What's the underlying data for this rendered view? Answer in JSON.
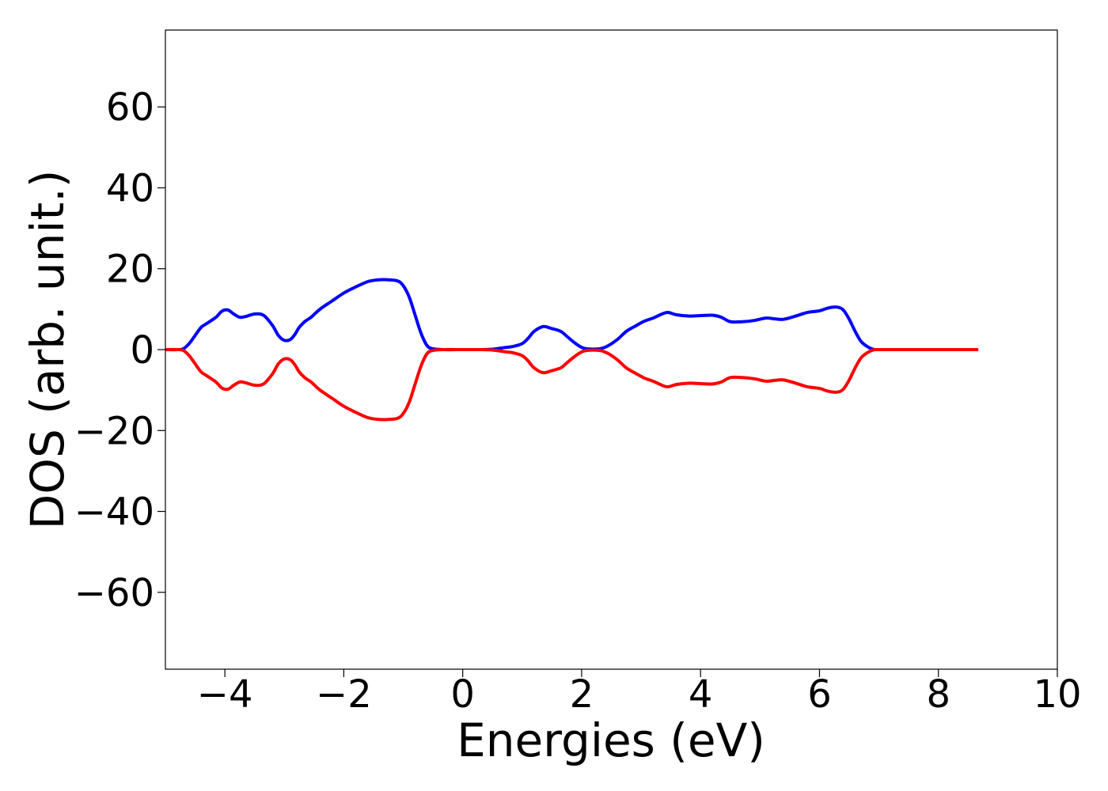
{
  "chart_data": {
    "type": "line",
    "title": "",
    "xlabel": "Energies (eV)",
    "ylabel": "DOS (arb. unit.)",
    "xlim": [
      -5,
      10
    ],
    "ylim": [
      -79,
      79
    ],
    "xticks": [
      -4,
      -2,
      0,
      2,
      4,
      6,
      8,
      10
    ],
    "xtick_labels": [
      "−4",
      "−2",
      "0",
      "2",
      "4",
      "6",
      "8",
      "10"
    ],
    "yticks": [
      60,
      40,
      20,
      0,
      -20,
      -40,
      -60
    ],
    "ytick_labels": [
      "60",
      "40",
      "20",
      "0",
      "−20",
      "−40",
      "−60"
    ],
    "grid": false,
    "legend": "none",
    "series": [
      {
        "color": "#0000ff",
        "x": [
          -5.0,
          -4.8,
          -4.7,
          -4.6,
          -4.5,
          -4.4,
          -4.3,
          -4.15,
          -4.05,
          -3.95,
          -3.85,
          -3.75,
          -3.65,
          -3.5,
          -3.35,
          -3.2,
          -3.1,
          -3.0,
          -2.9,
          -2.82,
          -2.75,
          -2.65,
          -2.55,
          -2.4,
          -2.2,
          -2.0,
          -1.8,
          -1.6,
          -1.45,
          -1.3,
          -1.1,
          -1.0,
          -0.9,
          -0.8,
          -0.7,
          -0.6,
          -0.5,
          -0.3,
          0.0,
          0.3,
          0.5,
          0.7,
          0.85,
          1.0,
          1.1,
          1.2,
          1.35,
          1.5,
          1.65,
          1.75,
          1.9,
          2.05,
          2.3,
          2.45,
          2.6,
          2.75,
          2.9,
          3.05,
          3.2,
          3.35,
          3.45,
          3.6,
          3.8,
          4.0,
          4.2,
          4.35,
          4.5,
          4.7,
          4.9,
          5.1,
          5.25,
          5.4,
          5.6,
          5.8,
          6.0,
          6.15,
          6.3,
          6.4,
          6.5,
          6.6,
          6.7,
          6.8,
          6.9,
          7.0,
          7.5,
          8.0,
          8.5,
          8.67
        ],
        "y": [
          0.0,
          0.0,
          0.2,
          1.5,
          3.5,
          5.5,
          6.5,
          8.0,
          9.5,
          9.8,
          8.8,
          8.0,
          8.2,
          8.8,
          8.5,
          6.0,
          3.5,
          2.3,
          2.5,
          3.8,
          5.5,
          7.0,
          8.0,
          10.0,
          12.0,
          14.0,
          15.5,
          16.8,
          17.2,
          17.3,
          17.0,
          15.8,
          13.0,
          8.5,
          4.0,
          1.0,
          0.2,
          0.0,
          0.0,
          0.0,
          0.1,
          0.5,
          0.8,
          1.5,
          2.8,
          4.5,
          5.7,
          5.2,
          4.5,
          3.3,
          1.5,
          0.3,
          0.2,
          1.0,
          2.5,
          4.5,
          5.8,
          7.0,
          7.8,
          8.8,
          9.2,
          8.6,
          8.3,
          8.4,
          8.5,
          8.0,
          6.9,
          6.9,
          7.2,
          7.8,
          7.6,
          7.5,
          8.3,
          9.2,
          9.6,
          10.3,
          10.5,
          9.8,
          7.5,
          4.5,
          2.0,
          0.8,
          0.1,
          0.0,
          0.0,
          0.0,
          0.0,
          0.0
        ]
      },
      {
        "color": "#ff0000",
        "x": [
          -5.0,
          -4.8,
          -4.7,
          -4.6,
          -4.5,
          -4.4,
          -4.3,
          -4.15,
          -4.05,
          -3.95,
          -3.85,
          -3.75,
          -3.65,
          -3.5,
          -3.35,
          -3.2,
          -3.1,
          -3.0,
          -2.9,
          -2.82,
          -2.75,
          -2.65,
          -2.55,
          -2.4,
          -2.2,
          -2.0,
          -1.8,
          -1.6,
          -1.45,
          -1.3,
          -1.1,
          -1.0,
          -0.9,
          -0.8,
          -0.7,
          -0.6,
          -0.5,
          -0.3,
          0.0,
          0.3,
          0.5,
          0.7,
          0.85,
          1.0,
          1.1,
          1.2,
          1.35,
          1.5,
          1.65,
          1.75,
          1.9,
          2.05,
          2.3,
          2.45,
          2.6,
          2.75,
          2.9,
          3.05,
          3.2,
          3.35,
          3.45,
          3.6,
          3.8,
          4.0,
          4.2,
          4.35,
          4.5,
          4.7,
          4.9,
          5.1,
          5.25,
          5.4,
          5.6,
          5.8,
          6.0,
          6.15,
          6.3,
          6.4,
          6.5,
          6.6,
          6.7,
          6.8,
          6.9,
          7.0,
          7.5,
          8.0,
          8.5,
          8.67
        ],
        "y": [
          0.0,
          0.0,
          -0.2,
          -1.5,
          -3.5,
          -5.5,
          -6.5,
          -8.0,
          -9.5,
          -9.8,
          -8.8,
          -8.0,
          -8.2,
          -8.8,
          -8.5,
          -6.0,
          -3.5,
          -2.3,
          -2.5,
          -3.8,
          -5.5,
          -7.0,
          -8.0,
          -10.0,
          -12.0,
          -14.0,
          -15.5,
          -16.8,
          -17.2,
          -17.3,
          -17.0,
          -15.8,
          -13.0,
          -8.5,
          -4.0,
          -1.0,
          -0.2,
          0.0,
          0.0,
          0.0,
          -0.1,
          -0.5,
          -0.8,
          -1.5,
          -2.8,
          -4.5,
          -5.7,
          -5.2,
          -4.5,
          -3.3,
          -1.5,
          -0.3,
          -0.2,
          -1.0,
          -2.5,
          -4.5,
          -5.8,
          -7.0,
          -7.8,
          -8.8,
          -9.2,
          -8.6,
          -8.3,
          -8.4,
          -8.5,
          -8.0,
          -6.9,
          -6.9,
          -7.2,
          -7.8,
          -7.6,
          -7.5,
          -8.3,
          -9.2,
          -9.6,
          -10.3,
          -10.5,
          -9.8,
          -7.5,
          -4.5,
          -2.0,
          -0.8,
          -0.1,
          0.0,
          0.0,
          0.0,
          0.0,
          0.0
        ]
      }
    ]
  }
}
